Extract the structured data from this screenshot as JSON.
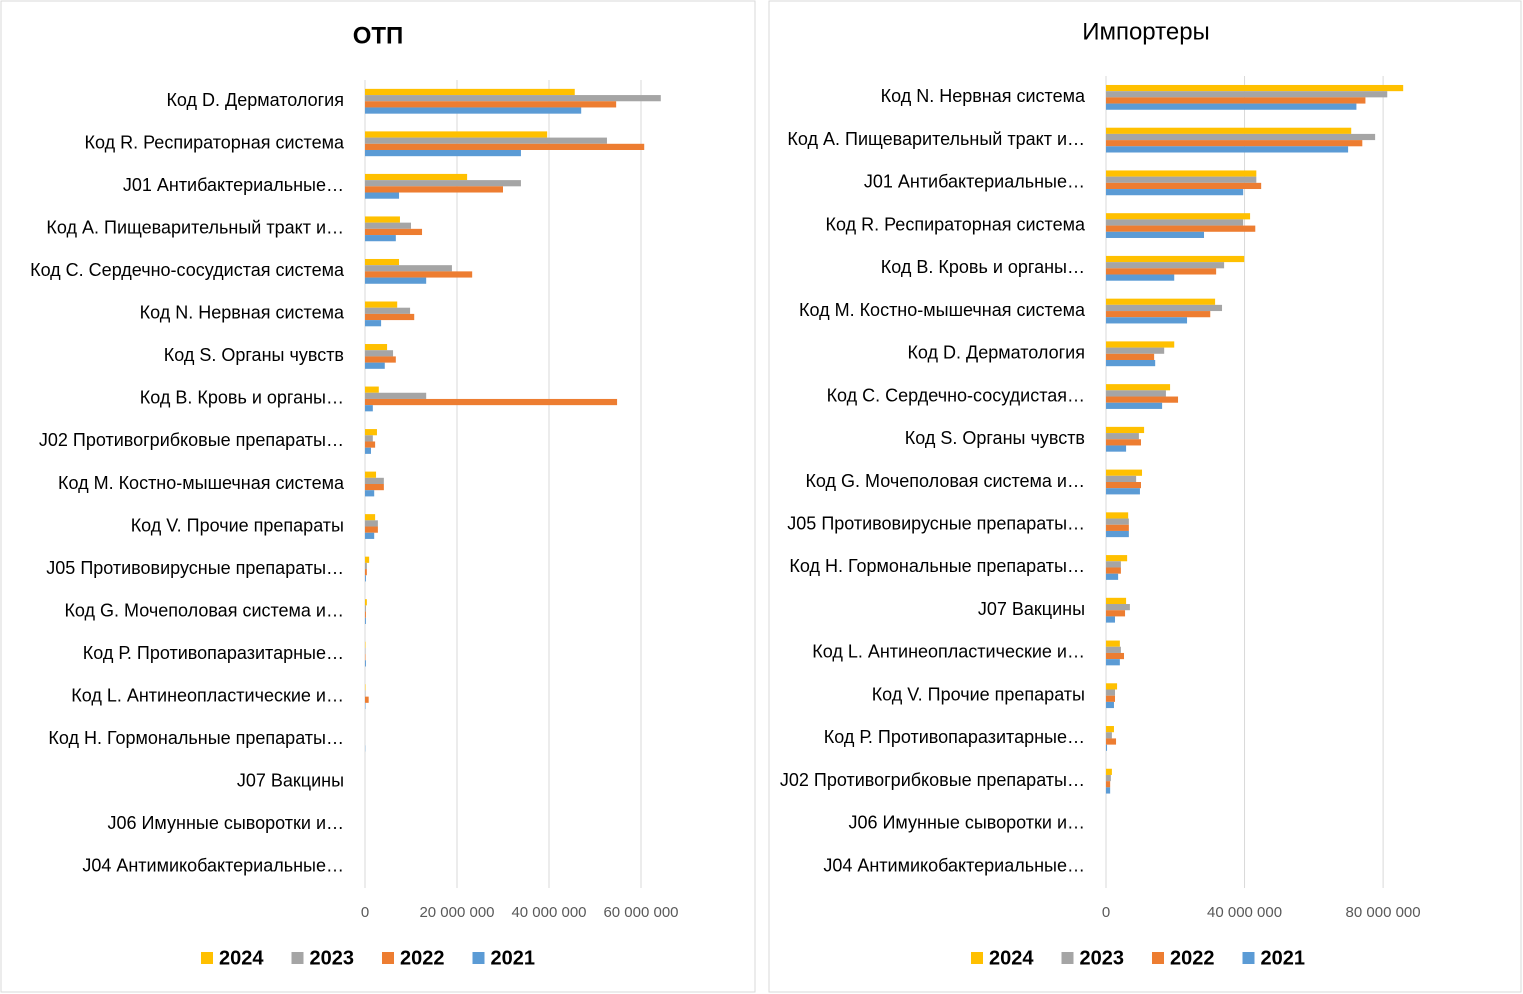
{
  "chart_data": [
    {
      "type": "bar",
      "orientation": "horizontal",
      "title": "ОТП",
      "title_bold": true,
      "grid": true,
      "legend": "bottom",
      "categories": [
        "Код D. Дерматология",
        "Код R. Респираторная система",
        "J01 Антибактериальные…",
        "Код А. Пищеварительный тракт и…",
        "Код С. Сердечно-сосудистая система",
        "Код N. Нервная система",
        "Код S.  Органы чувств",
        "Код В. Кровь и органы…",
        "J02 Противогрибковые препараты…",
        "Код М. Костно-мышечная система",
        "Код V. Прочие препараты",
        "J05 Противовирусные препараты…",
        "Код G. Мочеполовая система и…",
        "Код Р. Противопаразитарные…",
        "Код L. Антинеопластические и…",
        "Код Н. Гормональные препараты…",
        "J07 Вакцины",
        "J06 Имунные сыворотки и…",
        "J04 Антимикобактериальные…"
      ],
      "series": [
        {
          "name": "2024",
          "color": "#FFC000",
          "values": [
            45600000,
            39600000,
            22200000,
            7600000,
            7400000,
            7000000,
            4800000,
            3000000,
            2600000,
            2400000,
            2200000,
            900000,
            400000,
            100000,
            100000,
            0,
            0,
            0,
            0
          ]
        },
        {
          "name": "2023",
          "color": "#A5A5A5",
          "values": [
            64300000,
            52600000,
            33900000,
            10000000,
            18900000,
            9800000,
            6100000,
            13300000,
            1700000,
            4100000,
            2800000,
            400000,
            200000,
            100000,
            100000,
            0,
            0,
            0,
            0
          ]
        },
        {
          "name": "2022",
          "color": "#ED7D31",
          "values": [
            54600000,
            60700000,
            30000000,
            12400000,
            23300000,
            10700000,
            6700000,
            54800000,
            2200000,
            4100000,
            2800000,
            400000,
            200000,
            100000,
            800000,
            0,
            0,
            0,
            0
          ]
        },
        {
          "name": "2021",
          "color": "#5B9BD5",
          "values": [
            47000000,
            33900000,
            7400000,
            6700000,
            13300000,
            3500000,
            4300000,
            1700000,
            1300000,
            2000000,
            2000000,
            200000,
            200000,
            200000,
            100000,
            50000,
            0,
            0,
            0
          ]
        }
      ],
      "xlim": [
        0,
        70000000
      ],
      "xticks": [
        0,
        {
          "value": 20000000,
          "label": "20 000 000"
        },
        {
          "value": 40000000,
          "label": "40 000 000"
        },
        {
          "value": 60000000,
          "label": "60 000 000"
        }
      ]
    },
    {
      "type": "bar",
      "orientation": "horizontal",
      "title": "Импортеры",
      "title_bold": false,
      "grid": true,
      "legend": "bottom",
      "categories": [
        "Код N. Нервная система",
        "Код А. Пищеварительный тракт и…",
        "J01 Антибактериальные…",
        "Код R. Респираторная система",
        "Код В. Кровь и органы…",
        "Код М. Костно-мышечная система",
        "Код D. Дерматология",
        "Код С. Сердечно-сосудистая…",
        "Код S.  Органы чувств",
        "Код G. Мочеполовая система и…",
        "J05 Противовирусные препараты…",
        "Код Н. Гормональные препараты…",
        "J07 Вакцины",
        "Код L. Антинеопластические и…",
        "Код V. Прочие препараты",
        "Код Р. Противопаразитарные…",
        "J02 Противогрибковые препараты…",
        "J06 Имунные сыворотки и…",
        "J04 Антимикобактериальные…"
      ],
      "series": [
        {
          "name": "2024",
          "color": "#FFC000",
          "values": [
            85800000,
            70800000,
            43400000,
            41600000,
            39900000,
            31500000,
            19700000,
            18500000,
            11000000,
            10400000,
            6400000,
            6100000,
            5800000,
            4000000,
            3200000,
            2300000,
            1700000,
            0,
            0
          ]
        },
        {
          "name": "2023",
          "color": "#A5A5A5",
          "values": [
            81200000,
            77700000,
            43400000,
            39600000,
            34100000,
            33500000,
            16800000,
            17300000,
            9500000,
            8700000,
            6600000,
            4300000,
            6900000,
            4300000,
            2600000,
            1700000,
            1400000,
            0,
            0
          ]
        },
        {
          "name": "2022",
          "color": "#ED7D31",
          "values": [
            74900000,
            74000000,
            44800000,
            43100000,
            31800000,
            30100000,
            13900000,
            20800000,
            10100000,
            10100000,
            6600000,
            4300000,
            5500000,
            5200000,
            2600000,
            2900000,
            1200000,
            0,
            0
          ]
        },
        {
          "name": "2021",
          "color": "#5B9BD5",
          "values": [
            72300000,
            69900000,
            39600000,
            28300000,
            19700000,
            23400000,
            14200000,
            16200000,
            5800000,
            9800000,
            6600000,
            3500000,
            2600000,
            4000000,
            2300000,
            300000,
            1200000,
            0,
            0
          ]
        }
      ],
      "xlim": [
        0,
        110000000
      ],
      "xticks": [
        0,
        {
          "value": 40000000,
          "label": "40 000 000"
        },
        {
          "value": 80000000,
          "label": "80 000 000"
        }
      ]
    }
  ]
}
